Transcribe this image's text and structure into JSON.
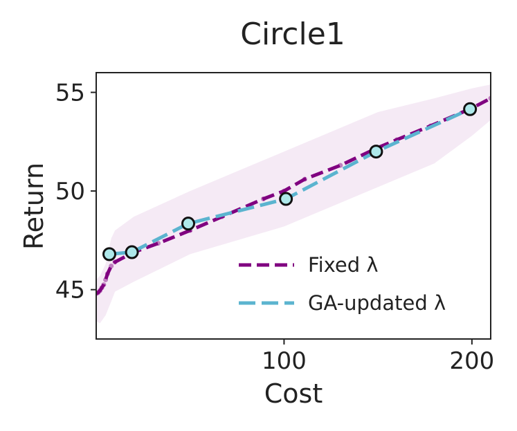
{
  "chart_data": {
    "type": "line",
    "title": "Circle1",
    "xlabel": "Cost",
    "ylabel": "Return",
    "xlim": [
      0,
      210
    ],
    "ylim": [
      42.5,
      56
    ],
    "xticks": [
      100,
      200
    ],
    "yticks": [
      45,
      50,
      55
    ],
    "grid": false,
    "legend_position": "lower-right",
    "band": {
      "series": "Fixed λ",
      "x": [
        0,
        2,
        5,
        8,
        10,
        20,
        50,
        100,
        150,
        180,
        200,
        210
      ],
      "upper": [
        45.5,
        45.7,
        46.3,
        47.6,
        48.0,
        48.7,
        50.0,
        52.0,
        54.0,
        54.7,
        55.2,
        55.4
      ],
      "lower": [
        43.4,
        43.3,
        43.7,
        44.4,
        44.9,
        45.4,
        46.8,
        48.2,
        50.2,
        51.4,
        52.8,
        53.6
      ],
      "color": "#f5eaf5"
    },
    "series": [
      {
        "name": "Fixed λ",
        "color": "#800080",
        "x": [
          0,
          1,
          2,
          3,
          4,
          5,
          6,
          8,
          10,
          20,
          33,
          50,
          67,
          89,
          100,
          111,
          130,
          150,
          160,
          178,
          200,
          210
        ],
        "y": [
          44.8,
          44.85,
          44.95,
          45.1,
          45.25,
          45.5,
          45.8,
          46.2,
          46.4,
          46.9,
          47.35,
          48.0,
          48.7,
          49.6,
          50.0,
          50.6,
          51.3,
          52.2,
          52.6,
          53.3,
          54.2,
          54.7
        ]
      },
      {
        "name": "GA-updated λ",
        "color": "#5bb4cf",
        "marker_color": "#aee8ea",
        "x": [
          7,
          19,
          49,
          101,
          149,
          199
        ],
        "y": [
          46.8,
          46.9,
          48.35,
          49.6,
          52.0,
          54.15
        ]
      }
    ],
    "legend": [
      {
        "label": "Fixed λ",
        "color": "#800080"
      },
      {
        "label": "GA-updated λ",
        "color": "#5bb4cf"
      }
    ]
  }
}
